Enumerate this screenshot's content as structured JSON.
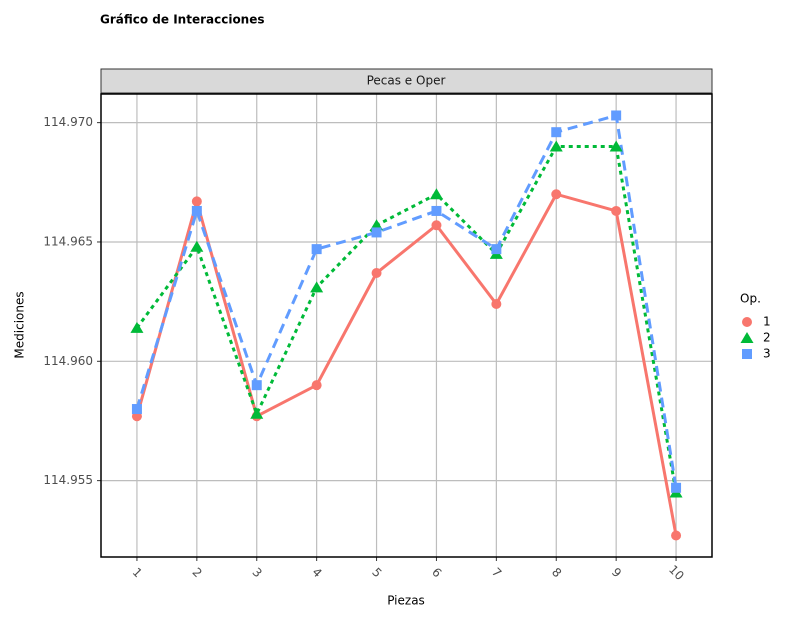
{
  "chart_data": {
    "type": "line",
    "title": "Gráfico de Interacciones",
    "facet_label": "Pecas e Oper",
    "x_label": "Piezas",
    "y_label": "Mediciones",
    "legend_title": "Op.",
    "legend_position": "right",
    "categories": [
      "1",
      "2",
      "3",
      "4",
      "5",
      "6",
      "7",
      "8",
      "9",
      "10"
    ],
    "series": [
      {
        "name": "1",
        "color": "#F8766D",
        "line_style": "solid",
        "marker": "circle",
        "values": [
          114.9577,
          114.9667,
          114.9577,
          114.959,
          114.9637,
          114.9657,
          114.9624,
          114.967,
          114.9663,
          114.9527
        ]
      },
      {
        "name": "2",
        "color": "#00BA38",
        "line_style": "dotted",
        "marker": "triangle",
        "values": [
          114.9614,
          114.9648,
          114.9578,
          114.9631,
          114.9657,
          114.967,
          114.9645,
          114.969,
          114.969,
          114.9545
        ]
      },
      {
        "name": "3",
        "color": "#619CFF",
        "line_style": "dashed",
        "marker": "square",
        "values": [
          114.958,
          114.9663,
          114.959,
          114.9647,
          114.9654,
          114.9663,
          114.9647,
          114.9696,
          114.9703,
          114.9547
        ]
      }
    ],
    "ylim": [
      114.9518,
      114.9712
    ],
    "yticks": [
      {
        "value": 114.955,
        "label": "114.955"
      },
      {
        "value": 114.96,
        "label": "114.960"
      },
      114.965,
      {
        "value": 114.97,
        "label": "114.970"
      }
    ],
    "grid": true
  }
}
